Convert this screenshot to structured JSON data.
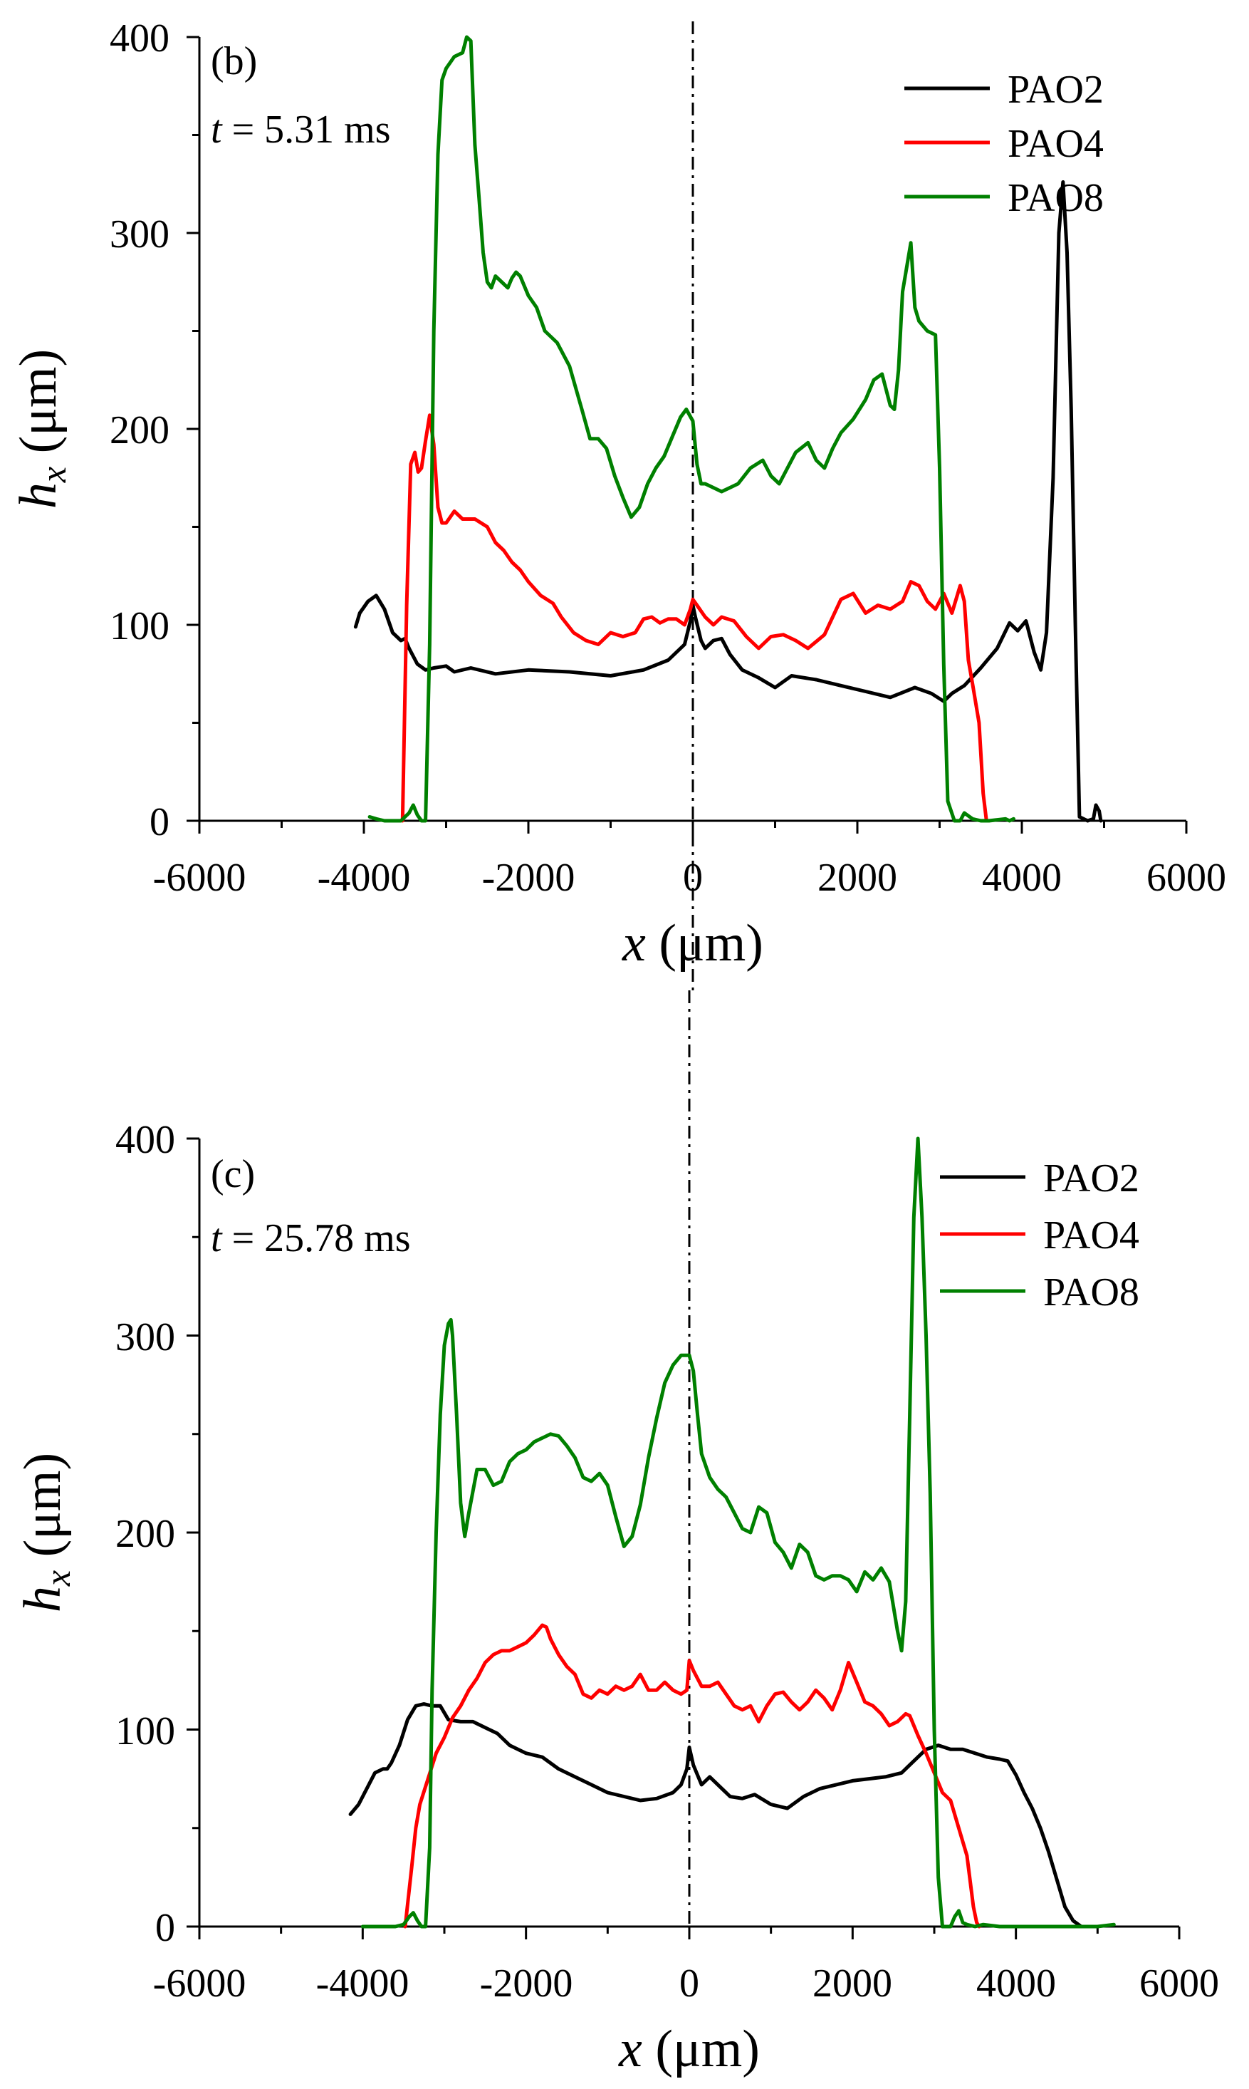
{
  "chart_data": [
    {
      "type": "line",
      "panel_label": "(b)",
      "time_label": {
        "var": "t",
        "rest": " = 5.31 ms"
      },
      "xlabel": {
        "var": "x",
        "unit": " (μm)"
      },
      "ylabel": {
        "var": "h",
        "sub": "x",
        "unit": " (μm)"
      },
      "xlim": [
        -6000,
        6000
      ],
      "ylim": [
        0,
        400
      ],
      "xticks": [
        -6000,
        -4000,
        -2000,
        0,
        2000,
        4000,
        6000
      ],
      "yticks": [
        0,
        100,
        200,
        300,
        400
      ],
      "xtick_labels": [
        "-6000",
        "-4000",
        "-2000",
        "0",
        "2000",
        "4000",
        "6000"
      ],
      "ytick_labels": [
        "0",
        "100",
        "200",
        "300",
        "400"
      ],
      "center_line_x": 0,
      "legend_position": "top-right",
      "series": [
        {
          "name": "PAO2",
          "color": "#000000",
          "x": [
            -4100,
            -4050,
            -3950,
            -3850,
            -3750,
            -3650,
            -3550,
            -3500,
            -3450,
            -3350,
            -3250,
            -3150,
            -3000,
            -2900,
            -2700,
            -2400,
            -2000,
            -1500,
            -1000,
            -600,
            -300,
            -100,
            -30,
            0,
            30,
            100,
            150,
            250,
            350,
            450,
            600,
            800,
            1000,
            1200,
            1500,
            1800,
            2100,
            2400,
            2700,
            2900,
            3050,
            3150,
            3300,
            3500,
            3700,
            3850,
            3950,
            4050,
            4150,
            4230,
            4300,
            4380,
            4450,
            4500,
            4550,
            4600,
            4650,
            4700,
            4800,
            4870,
            4900,
            4940,
            4960
          ],
          "y": [
            99,
            106,
            112,
            115,
            108,
            96,
            92,
            93,
            88,
            80,
            77,
            78,
            79,
            76,
            78,
            75,
            77,
            76,
            74,
            77,
            82,
            90,
            102,
            110,
            104,
            92,
            88,
            92,
            93,
            85,
            77,
            73,
            68,
            74,
            72,
            69,
            66,
            63,
            68,
            65,
            61,
            65,
            69,
            78,
            88,
            101,
            97,
            102,
            86,
            77,
            96,
            175,
            300,
            326,
            290,
            210,
            100,
            2,
            0,
            1,
            8,
            5,
            0
          ]
        },
        {
          "name": "PAO4",
          "color": "#ff0000",
          "x": [
            -3530,
            -3480,
            -3430,
            -3380,
            -3340,
            -3300,
            -3250,
            -3200,
            -3150,
            -3100,
            -3050,
            -3000,
            -2900,
            -2800,
            -2650,
            -2500,
            -2400,
            -2300,
            -2200,
            -2100,
            -2000,
            -1850,
            -1700,
            -1600,
            -1450,
            -1300,
            -1150,
            -1000,
            -850,
            -700,
            -600,
            -500,
            -400,
            -300,
            -200,
            -100,
            -30,
            0,
            50,
            150,
            250,
            350,
            500,
            650,
            800,
            950,
            1100,
            1250,
            1400,
            1600,
            1800,
            1950,
            2100,
            2250,
            2400,
            2550,
            2650,
            2750,
            2850,
            2950,
            3050,
            3150,
            3250,
            3300,
            3350,
            3400,
            3480,
            3530,
            3570,
            3600
          ],
          "y": [
            0,
            110,
            182,
            188,
            178,
            180,
            194,
            207,
            192,
            160,
            152,
            152,
            158,
            154,
            154,
            150,
            142,
            138,
            132,
            128,
            122,
            115,
            111,
            104,
            96,
            92,
            90,
            96,
            94,
            96,
            103,
            104,
            101,
            103,
            103,
            100,
            108,
            113,
            110,
            104,
            100,
            104,
            102,
            94,
            88,
            94,
            95,
            92,
            88,
            95,
            113,
            116,
            106,
            110,
            108,
            112,
            122,
            120,
            112,
            108,
            116,
            106,
            120,
            112,
            82,
            70,
            50,
            14,
            0,
            0
          ]
        },
        {
          "name": "PAO8",
          "color": "#008000",
          "x": [
            -3930,
            -3850,
            -3750,
            -3650,
            -3550,
            -3450,
            -3400,
            -3350,
            -3300,
            -3250,
            -3200,
            -3150,
            -3100,
            -3050,
            -3000,
            -2900,
            -2800,
            -2750,
            -2700,
            -2650,
            -2600,
            -2550,
            -2500,
            -2450,
            -2400,
            -2350,
            -2300,
            -2250,
            -2200,
            -2150,
            -2100,
            -2000,
            -1900,
            -1800,
            -1650,
            -1500,
            -1350,
            -1250,
            -1150,
            -1050,
            -950,
            -850,
            -750,
            -650,
            -550,
            -450,
            -350,
            -250,
            -150,
            -80,
            0,
            50,
            100,
            150,
            250,
            350,
            450,
            550,
            700,
            850,
            950,
            1050,
            1150,
            1250,
            1400,
            1500,
            1600,
            1700,
            1800,
            1950,
            2100,
            2200,
            2300,
            2400,
            2450,
            2500,
            2550,
            2650,
            2700,
            2750,
            2850,
            2950,
            3000,
            3050,
            3100,
            3180,
            3250,
            3300,
            3400,
            3500,
            3600,
            3800,
            3850,
            3900
          ],
          "y": [
            2,
            1,
            0,
            0,
            0,
            4,
            8,
            3,
            0,
            0,
            90,
            250,
            340,
            378,
            384,
            390,
            392,
            400,
            398,
            345,
            318,
            290,
            275,
            272,
            278,
            276,
            274,
            272,
            277,
            280,
            278,
            268,
            262,
            250,
            244,
            232,
            210,
            195,
            195,
            190,
            176,
            165,
            155,
            160,
            172,
            180,
            186,
            196,
            206,
            210,
            204,
            182,
            172,
            172,
            170,
            168,
            170,
            172,
            180,
            184,
            176,
            172,
            180,
            188,
            193,
            184,
            180,
            190,
            198,
            205,
            215,
            225,
            228,
            212,
            210,
            230,
            270,
            295,
            262,
            255,
            250,
            248,
            180,
            80,
            10,
            0,
            0,
            4,
            1,
            0,
            0,
            1,
            0,
            1
          ]
        }
      ]
    },
    {
      "type": "line",
      "panel_label": "(c)",
      "time_label": {
        "var": "t",
        "rest": " = 25.78 ms"
      },
      "xlabel": {
        "var": "x",
        "unit": " (μm)"
      },
      "ylabel": {
        "var": "h",
        "sub": "x",
        "unit": " (μm)"
      },
      "xlim": [
        -6000,
        6000
      ],
      "ylim": [
        0,
        400
      ],
      "xticks": [
        -6000,
        -4000,
        -2000,
        0,
        2000,
        4000,
        6000
      ],
      "yticks": [
        0,
        100,
        200,
        300,
        400
      ],
      "xtick_labels": [
        "-6000",
        "-4000",
        "-2000",
        "0",
        "2000",
        "4000",
        "6000"
      ],
      "ytick_labels": [
        "0",
        "100",
        "200",
        "300",
        "400"
      ],
      "center_line_x": 0,
      "legend_position": "top-right",
      "series": [
        {
          "name": "PAO2",
          "color": "#000000",
          "x": [
            -4150,
            -4050,
            -3950,
            -3850,
            -3750,
            -3700,
            -3650,
            -3550,
            -3450,
            -3350,
            -3250,
            -3150,
            -3050,
            -2950,
            -2800,
            -2650,
            -2500,
            -2350,
            -2200,
            -2000,
            -1800,
            -1600,
            -1400,
            -1200,
            -1000,
            -800,
            -600,
            -400,
            -200,
            -100,
            -30,
            0,
            50,
            150,
            250,
            350,
            500,
            650,
            800,
            1000,
            1200,
            1400,
            1600,
            1800,
            2000,
            2200,
            2400,
            2600,
            2750,
            2900,
            3050,
            3200,
            3350,
            3500,
            3650,
            3800,
            3900,
            4000,
            4100,
            4200,
            4300,
            4400,
            4500,
            4600,
            4700,
            4800,
            4950,
            5000
          ],
          "y": [
            57,
            62,
            70,
            78,
            80,
            80,
            83,
            92,
            105,
            112,
            113,
            112,
            112,
            105,
            104,
            104,
            101,
            98,
            92,
            88,
            86,
            80,
            76,
            72,
            68,
            66,
            64,
            65,
            68,
            72,
            80,
            91,
            82,
            72,
            76,
            72,
            66,
            65,
            67,
            62,
            60,
            66,
            70,
            72,
            74,
            75,
            76,
            78,
            84,
            90,
            92,
            90,
            90,
            88,
            86,
            85,
            84,
            77,
            68,
            60,
            50,
            38,
            24,
            10,
            3,
            0,
            0,
            0
          ]
        },
        {
          "name": "PAO4",
          "color": "#ff0000",
          "x": [
            -3480,
            -3400,
            -3350,
            -3300,
            -3200,
            -3100,
            -3000,
            -2900,
            -2800,
            -2700,
            -2600,
            -2500,
            -2400,
            -2300,
            -2200,
            -2100,
            -2000,
            -1900,
            -1800,
            -1750,
            -1700,
            -1600,
            -1500,
            -1400,
            -1300,
            -1200,
            -1100,
            -1000,
            -900,
            -800,
            -700,
            -600,
            -500,
            -400,
            -300,
            -200,
            -100,
            -30,
            0,
            50,
            150,
            250,
            350,
            450,
            550,
            650,
            750,
            850,
            950,
            1050,
            1150,
            1250,
            1350,
            1450,
            1550,
            1650,
            1750,
            1850,
            1950,
            2050,
            2150,
            2250,
            2350,
            2450,
            2550,
            2650,
            2700,
            2800,
            2900,
            3000,
            3100,
            3200,
            3300,
            3400,
            3480,
            3520,
            3550
          ],
          "y": [
            0,
            30,
            50,
            62,
            75,
            88,
            96,
            106,
            112,
            120,
            126,
            134,
            138,
            140,
            140,
            142,
            144,
            148,
            153,
            152,
            146,
            138,
            132,
            128,
            118,
            116,
            120,
            118,
            122,
            120,
            122,
            128,
            120,
            120,
            124,
            120,
            118,
            120,
            135,
            130,
            122,
            122,
            124,
            118,
            112,
            110,
            112,
            104,
            112,
            118,
            119,
            114,
            110,
            114,
            120,
            116,
            110,
            120,
            134,
            124,
            114,
            112,
            108,
            102,
            104,
            108,
            107,
            97,
            88,
            78,
            68,
            64,
            50,
            36,
            10,
            2,
            0
          ]
        },
        {
          "name": "PAO8",
          "color": "#008000",
          "x": [
            -4000,
            -3800,
            -3600,
            -3500,
            -3430,
            -3380,
            -3330,
            -3280,
            -3230,
            -3180,
            -3150,
            -3100,
            -3050,
            -3000,
            -2950,
            -2920,
            -2900,
            -2850,
            -2800,
            -2750,
            -2700,
            -2600,
            -2500,
            -2400,
            -2300,
            -2200,
            -2100,
            -2000,
            -1900,
            -1800,
            -1700,
            -1600,
            -1500,
            -1400,
            -1300,
            -1200,
            -1100,
            -1000,
            -900,
            -800,
            -700,
            -600,
            -500,
            -400,
            -300,
            -200,
            -100,
            0,
            50,
            100,
            150,
            250,
            350,
            450,
            550,
            650,
            750,
            850,
            950,
            1050,
            1150,
            1250,
            1350,
            1450,
            1550,
            1650,
            1750,
            1850,
            1950,
            2050,
            2150,
            2250,
            2350,
            2450,
            2550,
            2600,
            2650,
            2700,
            2750,
            2800,
            2850,
            2900,
            2950,
            3000,
            3050,
            3100,
            3150,
            3200,
            3250,
            3300,
            3350,
            3400,
            3500,
            3600,
            3800,
            4000,
            5000,
            5200
          ],
          "y": [
            0,
            0,
            0,
            1,
            5,
            7,
            3,
            0,
            0,
            40,
            120,
            200,
            260,
            295,
            306,
            308,
            300,
            260,
            215,
            198,
            210,
            232,
            232,
            224,
            226,
            236,
            240,
            242,
            246,
            248,
            250,
            249,
            244,
            238,
            228,
            226,
            230,
            224,
            208,
            193,
            198,
            214,
            238,
            258,
            276,
            285,
            290,
            290,
            282,
            260,
            240,
            228,
            222,
            218,
            210,
            202,
            200,
            213,
            210,
            195,
            190,
            182,
            194,
            190,
            178,
            176,
            178,
            178,
            176,
            170,
            180,
            176,
            182,
            175,
            150,
            140,
            165,
            260,
            360,
            400,
            360,
            300,
            220,
            100,
            25,
            0,
            0,
            0,
            5,
            8,
            2,
            1,
            0,
            1,
            0,
            0,
            0,
            1
          ]
        }
      ]
    }
  ]
}
